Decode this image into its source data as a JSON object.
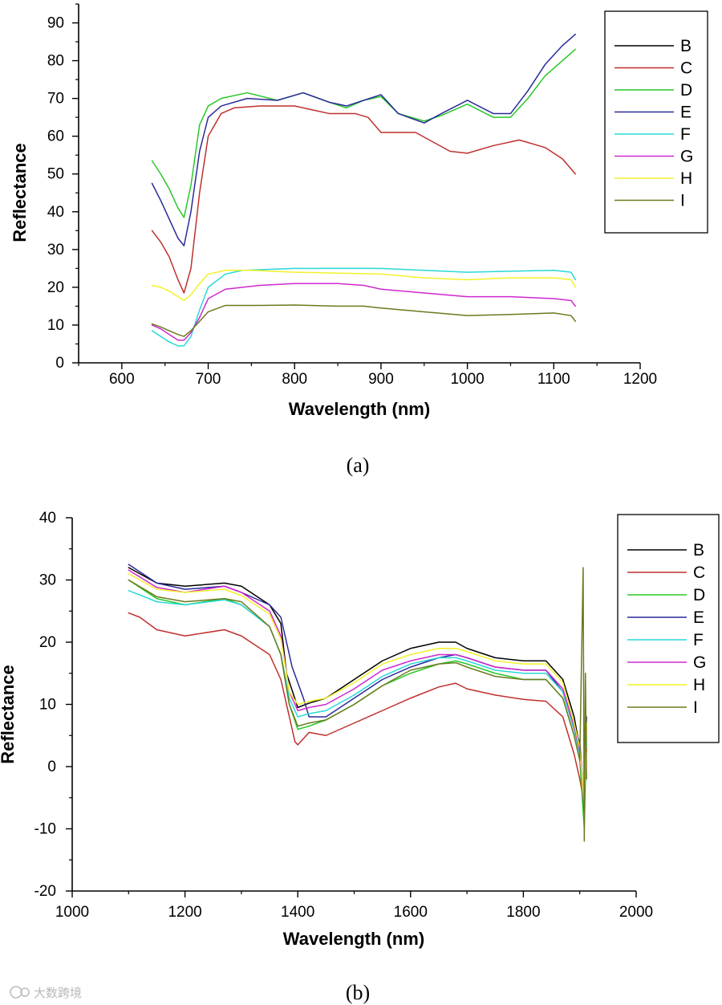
{
  "series_colors": {
    "B": "#000000",
    "C": "#c0302c",
    "D": "#28c828",
    "E": "#2a2a9a",
    "F": "#2ad8d8",
    "G": "#d028d0",
    "H": "#f2f22a",
    "I": "#6b7a1e"
  },
  "watermark": "大数跨境",
  "chart_data": [
    {
      "type": "line",
      "panel_label": "(a)",
      "title": "",
      "xlabel": "Wavelength (nm)",
      "ylabel": "Reflectance",
      "xlim": [
        550,
        1200
      ],
      "ylim": [
        0,
        95
      ],
      "xticks": [
        600,
        700,
        800,
        900,
        1000,
        1100,
        1200
      ],
      "yticks": [
        0,
        10,
        20,
        30,
        40,
        50,
        60,
        70,
        80,
        90
      ],
      "legend_position": "top-right",
      "legend": [
        "B",
        "C",
        "D",
        "E",
        "F",
        "G",
        "H",
        "I"
      ],
      "series": [
        {
          "name": "B",
          "x": [],
          "values": []
        },
        {
          "name": "C",
          "x": [
            635,
            645,
            655,
            665,
            672,
            680,
            690,
            700,
            715,
            730,
            760,
            800,
            840,
            870,
            885,
            900,
            940,
            980,
            1000,
            1030,
            1060,
            1090,
            1110,
            1125
          ],
          "values": [
            35,
            32,
            28,
            22,
            18.5,
            25,
            45,
            60,
            66,
            67.5,
            68,
            68,
            66,
            66,
            65,
            61,
            61,
            56,
            55.5,
            57.5,
            59,
            57,
            54,
            50
          ]
        },
        {
          "name": "D",
          "x": [
            635,
            645,
            655,
            665,
            672,
            680,
            690,
            700,
            715,
            745,
            780,
            810,
            840,
            860,
            880,
            900,
            920,
            950,
            970,
            1000,
            1030,
            1050,
            1070,
            1090,
            1110,
            1125
          ],
          "values": [
            53.5,
            50,
            46,
            41,
            38.5,
            47,
            63,
            68,
            70,
            71.5,
            69.5,
            71.5,
            69,
            67.5,
            69.5,
            70.5,
            66,
            64,
            65.5,
            68.5,
            65,
            65,
            70,
            76,
            80,
            83
          ]
        },
        {
          "name": "E",
          "x": [
            635,
            645,
            655,
            665,
            672,
            680,
            690,
            700,
            715,
            745,
            780,
            810,
            840,
            860,
            880,
            900,
            920,
            950,
            970,
            1000,
            1030,
            1050,
            1070,
            1090,
            1110,
            1125
          ],
          "values": [
            47.5,
            43,
            38,
            33,
            31,
            40,
            56,
            65,
            68,
            70,
            69.5,
            71.5,
            69,
            68,
            69.5,
            71,
            66,
            63.5,
            66,
            69.5,
            66,
            66,
            72,
            79,
            84,
            87
          ]
        },
        {
          "name": "F",
          "x": [
            635,
            645,
            655,
            665,
            672,
            680,
            690,
            700,
            720,
            740,
            800,
            900,
            1000,
            1100,
            1120,
            1125
          ],
          "values": [
            8.5,
            7,
            5.5,
            4.5,
            4.5,
            7,
            14,
            20,
            23.5,
            24.5,
            25,
            25,
            24,
            24.5,
            24,
            22
          ]
        },
        {
          "name": "G",
          "x": [
            635,
            645,
            655,
            665,
            672,
            680,
            690,
            700,
            720,
            760,
            800,
            850,
            880,
            900,
            950,
            1000,
            1050,
            1100,
            1120,
            1125
          ],
          "values": [
            10,
            9,
            7.5,
            6,
            6,
            8,
            12,
            17,
            19.5,
            20.5,
            21,
            21,
            20.5,
            19.5,
            18.5,
            17.5,
            17.5,
            17,
            16.5,
            15
          ]
        },
        {
          "name": "H",
          "x": [
            635,
            645,
            655,
            665,
            672,
            680,
            690,
            700,
            720,
            750,
            800,
            900,
            950,
            1000,
            1050,
            1100,
            1120,
            1125
          ],
          "values": [
            20.5,
            20,
            19,
            17.5,
            16.5,
            18,
            21,
            23.5,
            24.5,
            24.5,
            24,
            23.5,
            22.5,
            22,
            22.5,
            22.5,
            22,
            20
          ]
        },
        {
          "name": "I",
          "x": [
            635,
            645,
            655,
            665,
            672,
            680,
            690,
            700,
            720,
            760,
            800,
            850,
            880,
            900,
            950,
            1000,
            1050,
            1100,
            1120,
            1125
          ],
          "values": [
            10.3,
            9.5,
            8.5,
            7.5,
            7,
            8.5,
            11,
            13.5,
            15.2,
            15.2,
            15.3,
            15,
            15,
            14.5,
            13.5,
            12.5,
            12.8,
            13.2,
            12.5,
            11
          ]
        }
      ]
    },
    {
      "type": "line",
      "panel_label": "(b)",
      "title": "",
      "xlabel": "Wavelength (nm)",
      "ylabel": "Reflectance",
      "xlim": [
        1000,
        2000
      ],
      "ylim": [
        -20,
        40
      ],
      "xticks": [
        1000,
        1200,
        1400,
        1600,
        1800,
        2000
      ],
      "yticks": [
        -20,
        -10,
        0,
        10,
        20,
        30,
        40
      ],
      "legend_position": "top-right",
      "legend": [
        "B",
        "C",
        "D",
        "E",
        "F",
        "G",
        "H",
        "I"
      ],
      "series": [
        {
          "name": "B",
          "x": [
            1100,
            1150,
            1200,
            1270,
            1300,
            1350,
            1370,
            1380,
            1400,
            1420,
            1450,
            1500,
            1550,
            1600,
            1650,
            1680,
            1700,
            1750,
            1800,
            1840,
            1870,
            1890,
            1900,
            1908,
            1912
          ],
          "values": [
            32,
            29.5,
            29,
            29.5,
            29,
            26,
            23,
            15,
            9.5,
            10.2,
            11,
            14,
            17,
            19,
            20,
            20,
            19,
            17.5,
            17,
            17,
            14,
            8,
            3,
            -8,
            7
          ]
        },
        {
          "name": "C",
          "x": [
            1100,
            1120,
            1150,
            1200,
            1270,
            1300,
            1350,
            1370,
            1385,
            1395,
            1400,
            1420,
            1450,
            1500,
            1550,
            1600,
            1650,
            1680,
            1700,
            1750,
            1800,
            1840,
            1870,
            1890,
            1900,
            1908,
            1912
          ],
          "values": [
            24.7,
            24,
            22,
            21,
            22,
            21,
            18,
            14,
            8,
            4,
            3.5,
            5.5,
            5,
            7,
            9,
            11,
            12.8,
            13.4,
            12.5,
            11.5,
            10.8,
            10.5,
            8,
            2,
            -2,
            -6,
            3
          ]
        },
        {
          "name": "D",
          "x": [
            1100,
            1150,
            1200,
            1270,
            1300,
            1350,
            1370,
            1385,
            1400,
            1420,
            1450,
            1500,
            1550,
            1600,
            1650,
            1680,
            1700,
            1750,
            1800,
            1840,
            1870,
            1890,
            1900,
            1908,
            1912
          ],
          "values": [
            30,
            27,
            26,
            27,
            26,
            22.5,
            18,
            10,
            6,
            6.5,
            7.5,
            10,
            13,
            15,
            16.5,
            17,
            16.5,
            15,
            14,
            14,
            11,
            5,
            1,
            -10,
            5
          ]
        },
        {
          "name": "E",
          "x": [
            1100,
            1150,
            1200,
            1270,
            1300,
            1350,
            1370,
            1380,
            1390,
            1410,
            1420,
            1450,
            1500,
            1550,
            1600,
            1650,
            1680,
            1700,
            1750,
            1800,
            1840,
            1870,
            1890,
            1900,
            1908,
            1912
          ],
          "values": [
            32.5,
            29.5,
            28.5,
            29,
            28,
            26,
            24,
            20,
            16,
            11,
            8,
            8,
            11,
            14,
            16,
            17.5,
            18,
            17.5,
            16,
            15.5,
            15.5,
            12,
            6,
            4,
            -6,
            8
          ]
        },
        {
          "name": "F",
          "x": [
            1100,
            1150,
            1200,
            1270,
            1300,
            1350,
            1370,
            1385,
            1400,
            1420,
            1450,
            1500,
            1550,
            1600,
            1650,
            1680,
            1700,
            1750,
            1800,
            1840,
            1870,
            1890,
            1900,
            1908,
            1912
          ],
          "values": [
            28.3,
            26.5,
            26,
            26.8,
            26,
            22.5,
            18,
            11,
            8,
            8.5,
            9,
            11.5,
            14.5,
            16.5,
            17.5,
            17.5,
            17,
            15.5,
            15,
            15,
            12,
            6,
            2,
            -5,
            4
          ]
        },
        {
          "name": "G",
          "x": [
            1100,
            1150,
            1200,
            1270,
            1300,
            1350,
            1370,
            1385,
            1400,
            1420,
            1450,
            1500,
            1550,
            1600,
            1650,
            1680,
            1700,
            1750,
            1800,
            1840,
            1870,
            1890,
            1900,
            1908,
            1912
          ],
          "values": [
            31.6,
            28.8,
            28,
            29,
            28,
            25,
            21,
            12,
            9,
            9.5,
            10,
            12.5,
            15.5,
            17,
            18,
            18,
            17.5,
            16,
            15.5,
            15.5,
            12.5,
            6.5,
            2.5,
            -7,
            6
          ]
        },
        {
          "name": "H",
          "x": [
            1100,
            1150,
            1200,
            1270,
            1300,
            1350,
            1370,
            1385,
            1400,
            1420,
            1450,
            1500,
            1550,
            1600,
            1650,
            1680,
            1700,
            1750,
            1800,
            1840,
            1870,
            1890,
            1900,
            1908,
            1912
          ],
          "values": [
            31,
            28.5,
            28,
            28.5,
            27.5,
            24.5,
            20.5,
            12,
            10,
            10.5,
            11,
            13.5,
            16.5,
            18,
            19,
            19,
            18.5,
            17,
            16.5,
            16.5,
            13.5,
            7,
            3,
            -6,
            7
          ]
        },
        {
          "name": "I",
          "x": [
            1100,
            1150,
            1200,
            1270,
            1300,
            1350,
            1370,
            1385,
            1400,
            1420,
            1450,
            1500,
            1550,
            1600,
            1650,
            1680,
            1700,
            1750,
            1800,
            1840,
            1870,
            1890,
            1900,
            1906,
            1908,
            1910,
            1912
          ],
          "values": [
            30,
            27.3,
            26.5,
            27,
            26.5,
            22.5,
            18,
            10,
            6.5,
            7,
            7.5,
            10,
            13,
            15.5,
            16.5,
            16.7,
            16,
            14.5,
            14,
            14,
            11,
            5,
            1,
            32,
            -12,
            15,
            -2
          ]
        }
      ]
    }
  ]
}
